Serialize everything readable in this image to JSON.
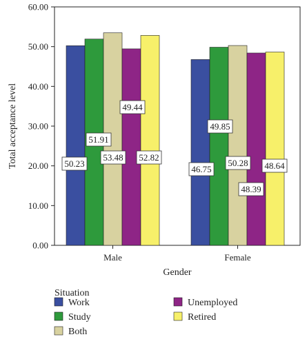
{
  "chart_data": {
    "type": "bar",
    "xlabel": "Gender",
    "ylabel": "Total acceptance level",
    "categories": [
      "Male",
      "Female"
    ],
    "ylim": [
      0,
      60
    ],
    "yticks": [
      "0.00",
      "10.00",
      "20.00",
      "30.00",
      "40.00",
      "50.00",
      "60.00"
    ],
    "series": [
      {
        "name": "Work",
        "color": "#3a4fa0",
        "values": [
          50.23,
          46.75
        ],
        "labels": [
          "50.23",
          "46.75"
        ]
      },
      {
        "name": "Study",
        "color": "#2e9a3c",
        "values": [
          51.91,
          49.85
        ],
        "labels": [
          "51.91",
          "49.85"
        ]
      },
      {
        "name": "Both",
        "color": "#d8d2a0",
        "values": [
          53.48,
          50.28
        ],
        "labels": [
          "53.48",
          "50.28"
        ]
      },
      {
        "name": "Unemployed",
        "color": "#8e2586",
        "values": [
          49.44,
          48.39
        ],
        "labels": [
          "49.44",
          "48.39"
        ]
      },
      {
        "name": "Retired",
        "color": "#f7f06a",
        "values": [
          52.82,
          48.64
        ],
        "labels": [
          "52.82",
          "48.64"
        ]
      }
    ],
    "legend": {
      "title": "Situation",
      "position": "bottom-left"
    }
  }
}
